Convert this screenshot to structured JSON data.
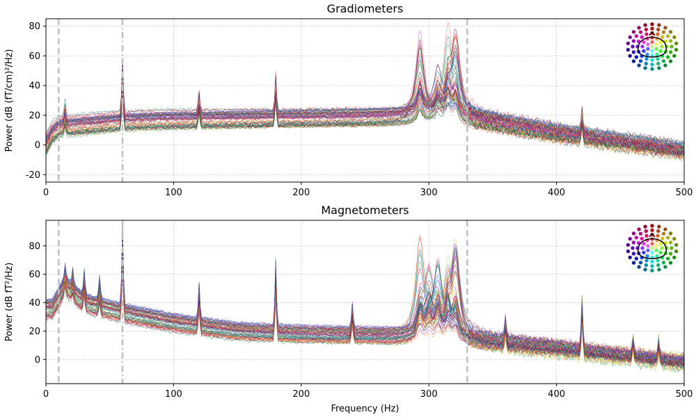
{
  "chart_data": [
    {
      "type": "line",
      "title": "Gradiometers",
      "xlabel": "",
      "ylabel": "Power (dB (fT/cm)²/Hz)",
      "xlim": [
        0,
        500
      ],
      "ylim": [
        -25,
        85
      ],
      "xticks": [
        0,
        100,
        200,
        300,
        400,
        500
      ],
      "yticks": [
        -20,
        0,
        20,
        40,
        60,
        80
      ],
      "grid": true,
      "legend": "sensor-layout top-right",
      "vlines": [
        {
          "x": 10,
          "style": "dashed"
        },
        {
          "x": 60,
          "style": "dashdot"
        },
        {
          "x": 330,
          "style": "dashed"
        }
      ],
      "baseline": {
        "x": [
          0,
          5,
          10,
          60,
          100,
          200,
          300,
          330,
          400,
          500
        ],
        "y": [
          0,
          8,
          12,
          16,
          17,
          18,
          19,
          18,
          8,
          -4
        ]
      },
      "line_noise_peaks": [
        {
          "x": 15,
          "y": 24
        },
        {
          "x": 60,
          "y": 56
        },
        {
          "x": 120,
          "y": 32
        },
        {
          "x": 180,
          "y": 44
        },
        {
          "x": 420,
          "y": 22
        }
      ],
      "hpi_peaks": [
        {
          "x": 293,
          "y": 79
        },
        {
          "x": 307,
          "y": 54
        },
        {
          "x": 315,
          "y": 76
        },
        {
          "x": 321,
          "y": 75
        }
      ],
      "n_channels": 60
    },
    {
      "type": "line",
      "title": "Magnetometers",
      "xlabel": "Frequency (Hz)",
      "ylabel": "Power (dB fT²/Hz)",
      "xlim": [
        0,
        500
      ],
      "ylim": [
        -17,
        98
      ],
      "xticks": [
        0,
        100,
        200,
        300,
        400,
        500
      ],
      "yticks": [
        0,
        20,
        40,
        60,
        80
      ],
      "grid": true,
      "legend": "sensor-layout top-right",
      "vlines": [
        {
          "x": 10,
          "style": "dashed"
        },
        {
          "x": 60,
          "style": "dashdot"
        },
        {
          "x": 330,
          "style": "dashed"
        }
      ],
      "baseline": {
        "x": [
          0,
          5,
          15,
          30,
          60,
          100,
          150,
          200,
          250,
          300,
          330,
          400,
          450,
          500
        ],
        "y": [
          36,
          36,
          52,
          40,
          33,
          26,
          20,
          18,
          17,
          15,
          14,
          8,
          3,
          -2
        ]
      },
      "line_noise_peaks": [
        {
          "x": 15,
          "y": 62
        },
        {
          "x": 21,
          "y": 59
        },
        {
          "x": 30,
          "y": 59
        },
        {
          "x": 42,
          "y": 54
        },
        {
          "x": 60,
          "y": 93
        },
        {
          "x": 120,
          "y": 51
        },
        {
          "x": 180,
          "y": 69
        },
        {
          "x": 240,
          "y": 37
        },
        {
          "x": 360,
          "y": 27
        },
        {
          "x": 420,
          "y": 44
        },
        {
          "x": 460,
          "y": 15
        },
        {
          "x": 480,
          "y": 13
        }
      ],
      "hpi_peaks": [
        {
          "x": 293,
          "y": 85
        },
        {
          "x": 300,
          "y": 62
        },
        {
          "x": 307,
          "y": 73
        },
        {
          "x": 315,
          "y": 80
        },
        {
          "x": 321,
          "y": 81
        }
      ],
      "n_channels": 60
    }
  ],
  "colors": {
    "grid": "#b0b0b0",
    "vline": "#bfbfbf",
    "palette": [
      "#f86a5b",
      "#0d6b47",
      "#6b0b50",
      "#8b0a2b",
      "#2e5fd6",
      "#f9a03f",
      "#3cb371",
      "#c74ad8",
      "#a6e05b",
      "#2b8a8a",
      "#e0367a",
      "#1f3b70",
      "#f07c3a",
      "#5e4bd8",
      "#4fa3e0",
      "#9b1e3a",
      "#18a35c",
      "#d84a3a"
    ]
  }
}
